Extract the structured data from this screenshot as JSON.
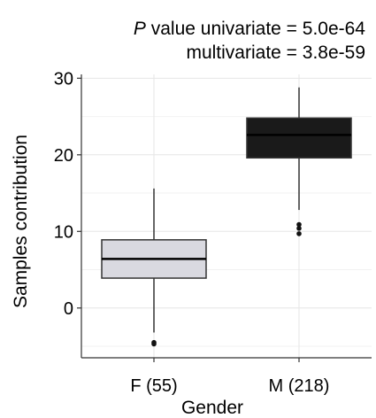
{
  "chart_data": {
    "type": "boxplot",
    "title": {
      "line1_italic": "P",
      "line1_rest": " value univariate = 5.0e-64",
      "line2": "multivariate = 3.8e-59"
    },
    "xlabel": "Gender",
    "ylabel": "Samples contribution",
    "ylim": [
      -6.5,
      30.5
    ],
    "yticks": [
      0,
      10,
      20,
      30
    ],
    "grid": true,
    "categories": [
      "F (55)",
      "M (218)"
    ],
    "boxes": [
      {
        "category": "F (55)",
        "whisker_low": -3.2,
        "q1": 3.9,
        "median": 6.4,
        "q3": 8.9,
        "whisker_high": 15.6,
        "outliers": [
          -4.5,
          -4.7
        ],
        "fill": "#d9d9e0"
      },
      {
        "category": "M (218)",
        "whisker_low": 12.8,
        "q1": 19.6,
        "median": 22.6,
        "q3": 24.8,
        "whisker_high": 28.8,
        "outliers": [
          10.9,
          10.4,
          9.7
        ],
        "fill": "#1a1a1a"
      }
    ]
  }
}
